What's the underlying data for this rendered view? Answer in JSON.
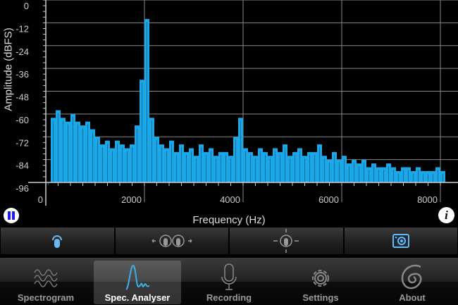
{
  "chart_data": {
    "type": "area",
    "xlabel": "Frequency (Hz)",
    "ylabel": "Amplitude (dBFS)",
    "xlim": [
      0,
      8000
    ],
    "ylim": [
      -96,
      0
    ],
    "xticks": [
      "0",
      "2000",
      "4000",
      "6000",
      "8000"
    ],
    "yticks": [
      "0",
      "-12",
      "-24",
      "-36",
      "-48",
      "-60",
      "-72",
      "-84",
      "-96"
    ],
    "grid": true,
    "color": "#1aa8e8",
    "x_step": 100,
    "values": [
      -96,
      -62,
      -58,
      -62,
      -64,
      -60,
      -64,
      -66,
      -64,
      -68,
      -72,
      -76,
      -74,
      -78,
      -74,
      -76,
      -78,
      -76,
      -66,
      -42,
      -10,
      -62,
      -72,
      -76,
      -78,
      -74,
      -80,
      -76,
      -80,
      -78,
      -82,
      -76,
      -80,
      -78,
      -82,
      -80,
      -80,
      -82,
      -72,
      -62,
      -78,
      -80,
      -82,
      -78,
      -80,
      -82,
      -78,
      -80,
      -76,
      -82,
      -80,
      -78,
      -82,
      -80,
      -80,
      -76,
      -82,
      -84,
      -80,
      -84,
      -82,
      -86,
      -84,
      -86,
      -84,
      -88,
      -86,
      -88,
      -88,
      -86,
      -88,
      -90,
      -88,
      -88,
      -90,
      -88,
      -90,
      -90,
      -90,
      -88,
      -90
    ]
  },
  "controls": {
    "pause_icon": "pause-icon",
    "info_label": "i"
  },
  "toolbar": [
    "touch-icon",
    "pinch-horizontal-icon",
    "pan-icon",
    "camera-icon"
  ],
  "tabs": [
    {
      "label": "Spectrogram",
      "icon": "waves-icon"
    },
    {
      "label": "Spec. Analyser",
      "icon": "spectrum-peak-icon",
      "selected": true
    },
    {
      "label": "Recording",
      "icon": "microphone-icon"
    },
    {
      "label": "Settings",
      "icon": "gear-icon"
    },
    {
      "label": "About",
      "icon": "spiral-icon"
    }
  ]
}
